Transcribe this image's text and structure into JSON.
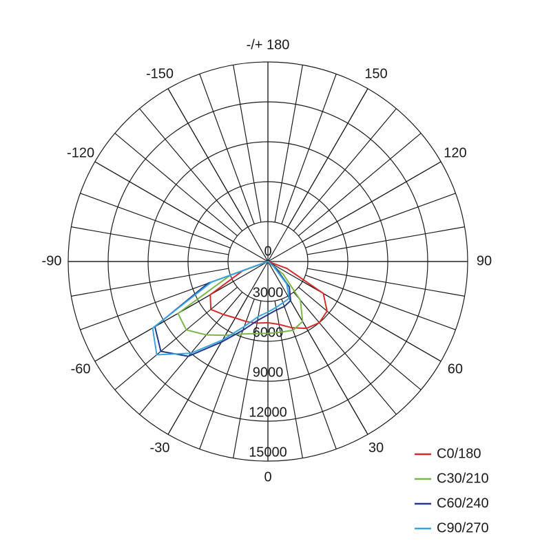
{
  "chart_data": {
    "type": "polar",
    "theta": [
      -80,
      -70,
      -60,
      -50,
      -40,
      -30,
      -20,
      -10,
      0,
      10,
      20,
      30,
      40,
      50,
      60,
      70
    ],
    "series": [
      {
        "name": "C0/180",
        "color": "#d62b2b",
        "values": [
          0,
          2000,
          5000,
          5600,
          5200,
          4900,
          4800,
          4700,
          4600,
          4800,
          5300,
          5800,
          6000,
          5800,
          4800,
          1500
        ]
      },
      {
        "name": "C30/210",
        "color": "#7ab648",
        "values": [
          0,
          3000,
          7800,
          8000,
          7200,
          6400,
          5800,
          5500,
          5400,
          5400,
          5500,
          5200,
          3800,
          1500,
          0,
          0
        ]
      },
      {
        "name": "C60/240",
        "color": "#25378f",
        "values": [
          0,
          4800,
          9800,
          10500,
          9300,
          7000,
          5500,
          4500,
          4000,
          3700,
          3600,
          3400,
          2500,
          800,
          0,
          0
        ]
      },
      {
        "name": "C90/270",
        "color": "#3aa5dc",
        "values": [
          0,
          4500,
          10000,
          10900,
          9000,
          6800,
          5200,
          4200,
          3800,
          3500,
          3300,
          3200,
          2200,
          500,
          0,
          0
        ]
      }
    ],
    "rlim": [
      0,
      15000
    ],
    "rticks": [
      0,
      3000,
      6000,
      9000,
      12000,
      15000
    ],
    "thetaticks": [
      {
        "value": 180,
        "label": "-/+ 180"
      },
      150,
      120,
      90,
      60,
      30,
      0,
      -30,
      -60,
      -90,
      -120,
      -150
    ],
    "grid": true,
    "legend": "lower right"
  }
}
